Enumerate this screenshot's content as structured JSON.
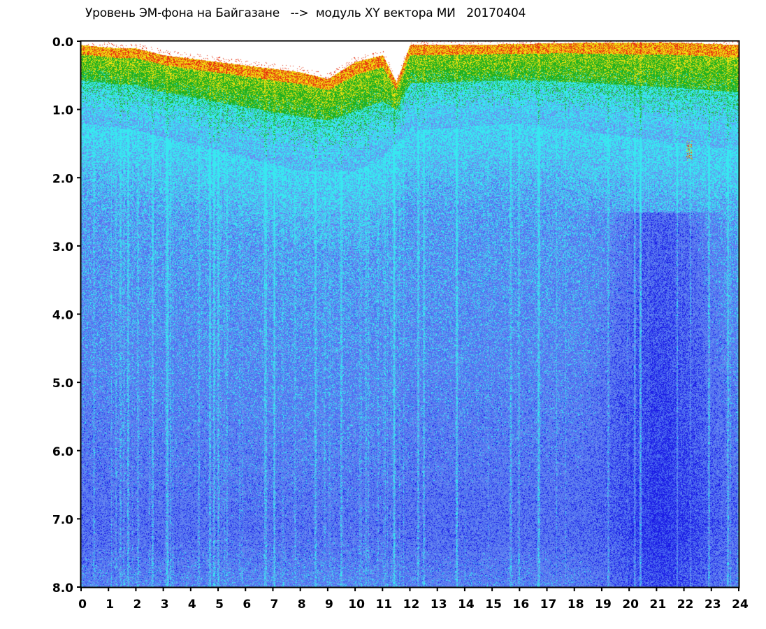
{
  "chart_data": {
    "type": "heatmap",
    "title": "Уровень ЭМ-фона на Байгазане   -->  модуль XY вектора МИ   20170404",
    "x_ticks": [
      "0",
      "1",
      "2",
      "3",
      "4",
      "5",
      "6",
      "7",
      "8",
      "9",
      "10",
      "11",
      "12",
      "13",
      "14",
      "15",
      "16",
      "17",
      "18",
      "19",
      "20",
      "21",
      "22",
      "23",
      "24"
    ],
    "y_ticks": [
      "0.0",
      "1.0",
      "2.0",
      "3.0",
      "4.0",
      "5.0",
      "6.0",
      "7.0",
      "8.0"
    ],
    "xlim": [
      0,
      24
    ],
    "ylim": [
      8,
      0
    ],
    "y_inverted": true,
    "grid": false,
    "colormap": [
      "#1a1ae6",
      "#4a6af0",
      "#6a8cf0",
      "#38e8f0",
      "#20b020",
      "#f0e010",
      "#e83010",
      "#ffffff"
    ],
    "upper_band_top": [
      {
        "x": 0.0,
        "y": 0.05
      },
      {
        "x": 1.3,
        "y": 0.1
      },
      {
        "x": 2.0,
        "y": 0.1
      },
      {
        "x": 2.5,
        "y": 0.15
      },
      {
        "x": 3.0,
        "y": 0.2
      },
      {
        "x": 4.0,
        "y": 0.25
      },
      {
        "x": 5.0,
        "y": 0.3
      },
      {
        "x": 6.0,
        "y": 0.35
      },
      {
        "x": 7.0,
        "y": 0.4
      },
      {
        "x": 8.0,
        "y": 0.45
      },
      {
        "x": 9.0,
        "y": 0.55
      },
      {
        "x": 10.0,
        "y": 0.3
      },
      {
        "x": 11.0,
        "y": 0.2
      },
      {
        "x": 11.5,
        "y": 0.6
      },
      {
        "x": 12.0,
        "y": 0.05
      },
      {
        "x": 14.0,
        "y": 0.05
      },
      {
        "x": 18.0,
        "y": 0.02
      },
      {
        "x": 22.0,
        "y": 0.02
      },
      {
        "x": 24.0,
        "y": 0.05
      }
    ],
    "upper_band_depth": [
      {
        "x": 0.0,
        "y": 1.2
      },
      {
        "x": 2.0,
        "y": 1.3
      },
      {
        "x": 4.0,
        "y": 1.5
      },
      {
        "x": 6.0,
        "y": 1.7
      },
      {
        "x": 8.0,
        "y": 1.9
      },
      {
        "x": 10.0,
        "y": 1.9
      },
      {
        "x": 11.0,
        "y": 1.7
      },
      {
        "x": 12.0,
        "y": 1.3
      },
      {
        "x": 16.0,
        "y": 1.2
      },
      {
        "x": 20.0,
        "y": 1.4
      },
      {
        "x": 24.0,
        "y": 1.6
      }
    ]
  }
}
